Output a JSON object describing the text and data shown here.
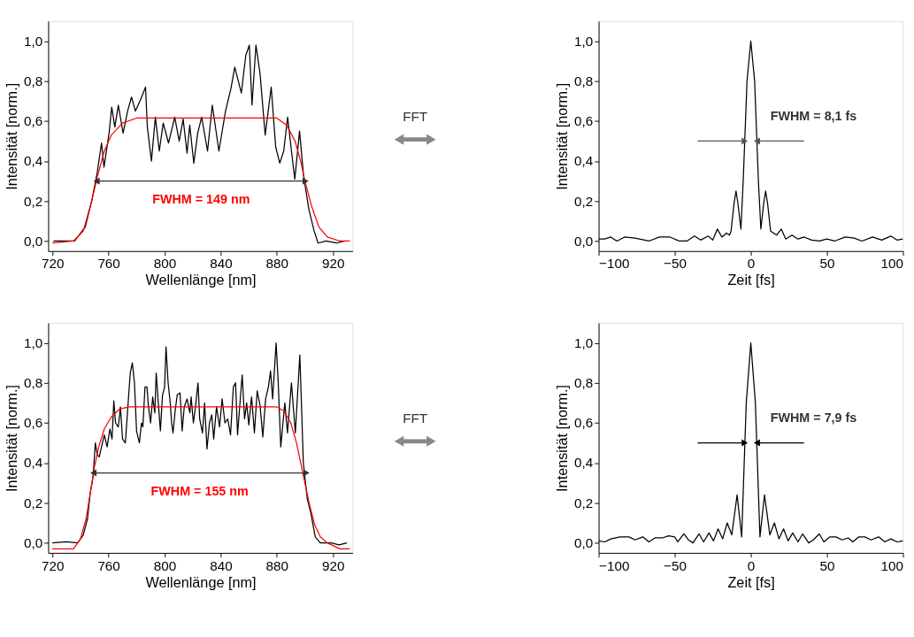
{
  "chart_data": [
    {
      "type": "line",
      "xlabel": "Wellenlänge [nm]",
      "ylabel": "Intensität [norm.]",
      "xlim": [
        717,
        934
      ],
      "ylim": [
        -0.05,
        1.1
      ],
      "xticks": [
        720,
        760,
        800,
        840,
        880,
        920
      ],
      "yticks": [
        {
          "value": 0,
          "label": "0,0"
        },
        {
          "value": 0.2,
          "label": "0,2"
        },
        {
          "value": 0.4,
          "label": "0,4"
        },
        {
          "value": 0.6,
          "label": "0,6"
        },
        {
          "value": 0.8,
          "label": "0,8"
        },
        {
          "value": 1.0,
          "label": "1,0"
        }
      ],
      "grid": false,
      "series": [
        {
          "color": "#000000",
          "x": [
            720.8,
            735.8,
            743.4,
            748,
            751.9,
            755,
            756.8,
            760.4,
            762.3,
            764.5,
            767,
            770.4,
            773.6,
            776.4,
            779.2,
            783,
            786.4,
            787.7,
            790.6,
            793.4,
            796.2,
            799,
            802.8,
            807.2,
            810.4,
            813.2,
            816,
            817.9,
            820.8,
            823.6,
            826.4,
            830.6,
            834,
            838.7,
            843.4,
            847.2,
            850,
            854.7,
            857.9,
            860.4,
            862.3,
            865.1,
            868,
            871.7,
            876,
            879.2,
            882.1,
            884.9,
            887.7,
            890.6,
            892.8,
            896.2,
            899,
            902.8,
            906.6,
            909.4,
            915,
            922.6,
            928.3
          ],
          "values": [
            0,
            0,
            0.07,
            0.2,
            0.34,
            0.49,
            0.37,
            0.54,
            0.67,
            0.57,
            0.68,
            0.54,
            0.65,
            0.72,
            0.65,
            0.71,
            0.77,
            0.57,
            0.4,
            0.62,
            0.45,
            0.59,
            0.49,
            0.62,
            0.5,
            0.61,
            0.44,
            0.58,
            0.39,
            0.54,
            0.62,
            0.45,
            0.68,
            0.45,
            0.65,
            0.76,
            0.87,
            0.74,
            0.93,
            0.98,
            0.68,
            0.98,
            0.84,
            0.53,
            0.77,
            0.47,
            0.39,
            0.45,
            0.62,
            0.44,
            0.31,
            0.55,
            0.33,
            0.16,
            0.05,
            -0.01,
            0,
            -0.01,
            0
          ]
        },
        {
          "color": "#ff0000",
          "x": [
            720,
            735,
            742,
            748,
            752,
            757,
            762,
            770,
            780,
            880,
            887,
            893,
            897,
            900,
            905,
            910,
            916,
            925,
            932
          ],
          "values": [
            -0.01,
            0,
            0.05,
            0.2,
            0.32,
            0.45,
            0.53,
            0.59,
            0.615,
            0.615,
            0.58,
            0.5,
            0.4,
            0.3,
            0.17,
            0.07,
            0.02,
            0,
            0
          ]
        },
        {
          "color": "#333333",
          "marker": "triangle",
          "x": [
            751.5,
            826,
            900.5
          ],
          "values": [
            0.3,
            0.3,
            0.3
          ]
        }
      ],
      "annotations": [
        "FWHM = 149 nm",
        "FFT"
      ]
    },
    {
      "type": "line",
      "xlabel": "Zeit [fs]",
      "ylabel": "Intensität [norm.]",
      "xlim": [
        -100,
        100
      ],
      "ylim": [
        -0.05,
        1.1
      ],
      "xticks": [
        -100,
        -50,
        0,
        50,
        100
      ],
      "yticks": [
        {
          "value": 0,
          "label": "0,0"
        },
        {
          "value": 0.2,
          "label": "0,2"
        },
        {
          "value": 0.4,
          "label": "0,4"
        },
        {
          "value": 0.6,
          "label": "0,6"
        },
        {
          "value": 0.8,
          "label": "0,8"
        },
        {
          "value": 1.0,
          "label": "1,0"
        }
      ],
      "grid": false,
      "series": [
        {
          "color": "#000000",
          "x": [
            -100,
            -96,
            -92,
            -88,
            -83,
            -76,
            -67,
            -60,
            -53,
            -47,
            -42,
            -37,
            -33,
            -28,
            -25,
            -22,
            -19,
            -16,
            -14,
            -13,
            -11,
            -9.7,
            -8.5,
            -6.5,
            -5,
            -2.5,
            0,
            2.5,
            5,
            6.6,
            8.5,
            9.7,
            11,
            13,
            15,
            17,
            20,
            23,
            27,
            31,
            35,
            40,
            45,
            50,
            55,
            62,
            68,
            73,
            80,
            86,
            92,
            96,
            100
          ],
          "values": [
            0.01,
            0.01,
            0.02,
            0,
            0.02,
            0.015,
            0,
            0.02,
            0.02,
            0,
            0,
            0.025,
            0.005,
            0.025,
            0.005,
            0.06,
            0.02,
            0.04,
            0.03,
            0.05,
            0.19,
            0.25,
            0.19,
            0.06,
            0.3,
            0.8,
            1.0,
            0.8,
            0.3,
            0.06,
            0.19,
            0.25,
            0.19,
            0.05,
            0.04,
            0.03,
            0.06,
            0.01,
            0.03,
            0.01,
            0.02,
            0.005,
            0,
            0.01,
            0,
            0.02,
            0.015,
            0,
            0.02,
            0.005,
            0.025,
            0.005,
            0.01
          ]
        },
        {
          "color": "#555555",
          "marker": "triangle",
          "x": [
            -35,
            -4
          ],
          "values": [
            0.5,
            0.5
          ]
        },
        {
          "color": "#555555",
          "marker": "triangle",
          "x": [
            35,
            4
          ],
          "values": [
            0.5,
            0.5
          ]
        }
      ],
      "annotations": [
        "FWHM = 8,1 fs"
      ]
    },
    {
      "type": "line",
      "xlabel": "Wellenlänge [nm]",
      "ylabel": "Intensität [norm.]",
      "xlim": [
        717,
        934
      ],
      "ylim": [
        -0.05,
        1.1
      ],
      "xticks": [
        720,
        760,
        800,
        840,
        880,
        920
      ],
      "yticks": [
        {
          "value": 0,
          "label": "0,0"
        },
        {
          "value": 0.2,
          "label": "0,2"
        },
        {
          "value": 0.4,
          "label": "0,4"
        },
        {
          "value": 0.6,
          "label": "0,6"
        },
        {
          "value": 0.8,
          "label": "0,8"
        },
        {
          "value": 1.0,
          "label": "1,0"
        }
      ],
      "grid": false,
      "series": [
        {
          "color": "#000000",
          "x": [
            720,
            730,
            738,
            742,
            745,
            747,
            749,
            750.6,
            752,
            753.4,
            755,
            757,
            759,
            761,
            762.5,
            763.8,
            765,
            767,
            768.5,
            770,
            772,
            774,
            775.5,
            777,
            778.5,
            780,
            782,
            783.5,
            784.5,
            786,
            787.4,
            788.5,
            790,
            791.5,
            793,
            794,
            795.5,
            797,
            798.5,
            800,
            801,
            802.5,
            804,
            805,
            806,
            807.5,
            809,
            811,
            812.5,
            814,
            816,
            818,
            818.9,
            820.5,
            822,
            823.8,
            825,
            827,
            828.5,
            830.2,
            832,
            833.6,
            835,
            837,
            839.2,
            841,
            843,
            845,
            847,
            849,
            850.6,
            852,
            853.5,
            855.3,
            857,
            858.5,
            860,
            862,
            864,
            866,
            868,
            870,
            872,
            874,
            875.5,
            877,
            879.5,
            881,
            882.8,
            885.7,
            887.6,
            890.4,
            893.2,
            896.4,
            898.9,
            901.7,
            904.2,
            907.4,
            911,
            918.7,
            924.4,
            930
          ],
          "values": [
            0,
            0.005,
            0,
            0.04,
            0.12,
            0.25,
            0.33,
            0.5,
            0.44,
            0.43,
            0.48,
            0.54,
            0.48,
            0.57,
            0.52,
            0.71,
            0.6,
            0.58,
            0.68,
            0.52,
            0.5,
            0.7,
            0.85,
            0.9,
            0.8,
            0.56,
            0.5,
            0.6,
            0.58,
            0.78,
            0.78,
            0.68,
            0.6,
            0.73,
            0.65,
            0.85,
            0.7,
            0.56,
            0.74,
            0.78,
            0.98,
            0.8,
            0.7,
            0.6,
            0.55,
            0.66,
            0.74,
            0.75,
            0.56,
            0.68,
            0.72,
            0.65,
            0.73,
            0.6,
            0.68,
            0.8,
            0.62,
            0.55,
            0.7,
            0.47,
            0.6,
            0.64,
            0.52,
            0.68,
            0.58,
            0.72,
            0.6,
            0.62,
            0.54,
            0.78,
            0.8,
            0.54,
            0.68,
            0.84,
            0.62,
            0.7,
            0.59,
            0.73,
            0.55,
            0.76,
            0.69,
            0.53,
            0.72,
            0.78,
            0.86,
            0.72,
            1.0,
            0.8,
            0.48,
            0.7,
            0.55,
            0.8,
            0.55,
            0.94,
            0.4,
            0.22,
            0.15,
            0.03,
            0,
            0,
            -0.01,
            0
          ]
        },
        {
          "color": "#ff0000",
          "x": [
            720,
            735,
            740,
            744,
            747,
            750,
            753,
            757,
            762,
            768,
            775,
            880,
            885,
            890,
            894,
            897,
            900,
            903,
            907,
            911,
            916,
            925,
            932
          ],
          "values": [
            -0.03,
            -0.03,
            0.02,
            0.12,
            0.25,
            0.38,
            0.48,
            0.57,
            0.63,
            0.67,
            0.68,
            0.68,
            0.66,
            0.6,
            0.5,
            0.4,
            0.3,
            0.2,
            0.09,
            0.03,
            0,
            -0.03,
            -0.03
          ]
        },
        {
          "color": "#333333",
          "marker": "triangle",
          "x": [
            749.2,
            825,
            901.1
          ],
          "values": [
            0.35,
            0.35,
            0.35
          ]
        }
      ],
      "annotations": [
        "FWHM = 155 nm",
        "FFT"
      ]
    },
    {
      "type": "line",
      "xlabel": "Zeit [fs]",
      "ylabel": "Intensität [norm.]",
      "xlim": [
        -100,
        100
      ],
      "ylim": [
        -0.05,
        1.1
      ],
      "xticks": [
        -100,
        -50,
        0,
        50,
        100
      ],
      "yticks": [
        {
          "value": 0,
          "label": "0,0"
        },
        {
          "value": 0.2,
          "label": "0,2"
        },
        {
          "value": 0.4,
          "label": "0,4"
        },
        {
          "value": 0.6,
          "label": "0,6"
        },
        {
          "value": 0.8,
          "label": "0,8"
        },
        {
          "value": 1.0,
          "label": "1,0"
        }
      ],
      "grid": false,
      "series": [
        {
          "color": "#000000",
          "x": [
            -100,
            -96,
            -92,
            -86,
            -80,
            -76,
            -71,
            -67,
            -63,
            -58,
            -54,
            -50,
            -48,
            -44,
            -41,
            -38,
            -34,
            -31,
            -27.5,
            -24.5,
            -21.5,
            -18.5,
            -15.5,
            -12.5,
            -9,
            -6,
            -3,
            0,
            3,
            6,
            9,
            12.5,
            15.5,
            18.5,
            21.5,
            24.5,
            27.5,
            31,
            34,
            38,
            41,
            45,
            48,
            52,
            56,
            60,
            64,
            67,
            71,
            75,
            79,
            84,
            88,
            92,
            96,
            100
          ],
          "values": [
            0.01,
            0.005,
            0.02,
            0.03,
            0.03,
            0.015,
            0.03,
            0.005,
            0.025,
            0.025,
            0.035,
            0.03,
            0.005,
            0.045,
            0.015,
            0,
            0.045,
            0.005,
            0.05,
            0.01,
            0.07,
            0.02,
            0.1,
            0.04,
            0.24,
            0.03,
            0.7,
            1.0,
            0.7,
            0.03,
            0.24,
            0.04,
            0.1,
            0.02,
            0.07,
            0.01,
            0.05,
            0.005,
            0.045,
            0,
            0.015,
            0.045,
            0.005,
            0.03,
            0.03,
            0.015,
            0.025,
            0.005,
            0.03,
            0.03,
            0.015,
            0.03,
            0.005,
            0.02,
            0.005,
            0.01
          ]
        },
        {
          "color": "#000000",
          "marker": "triangle",
          "x": [
            -35,
            -4
          ],
          "values": [
            0.5,
            0.5
          ]
        },
        {
          "color": "#000000",
          "marker": "triangle",
          "x": [
            35,
            4
          ],
          "values": [
            0.5,
            0.5
          ]
        }
      ],
      "annotations": [
        "FWHM = 7,9 fs"
      ]
    }
  ]
}
